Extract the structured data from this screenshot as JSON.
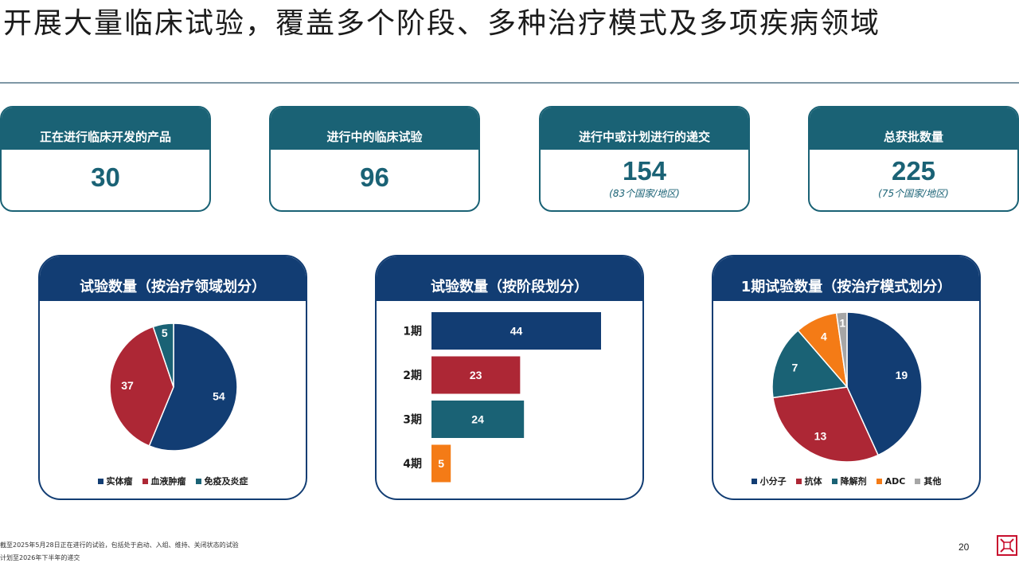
{
  "title": "开展大量临床试验，覆盖多个阶段、多种治疗模式及多项疾病领域",
  "kpis": [
    {
      "label": "正在进行临床开发的产品",
      "value": "30",
      "sub": ""
    },
    {
      "label": "进行中的临床试验",
      "value": "96",
      "sub": ""
    },
    {
      "label": "进行中或计划进行的递交",
      "value": "154",
      "sub": "(83个国家/地区)"
    },
    {
      "label": "总获批数量",
      "value": "225",
      "sub": "(75个国家/地区)"
    }
  ],
  "colors": {
    "navy": "#123d73",
    "red": "#ad2735",
    "teal": "#1a6275",
    "orange": "#f47b16",
    "gray": "#a6a6a6"
  },
  "chart_data": [
    {
      "type": "pie",
      "title": "试验数量（按治疗领域划分）",
      "categories": [
        "实体瘤",
        "血液肿瘤",
        "免疫及炎症"
      ],
      "values": [
        54,
        37,
        5
      ],
      "colors": [
        "#123d73",
        "#ad2735",
        "#1a6275"
      ],
      "legend": "bottom"
    },
    {
      "type": "bar",
      "orientation": "horizontal",
      "title": "试验数量（按阶段划分）",
      "categories": [
        "1期",
        "2期",
        "3期",
        "4期"
      ],
      "values": [
        44,
        23,
        24,
        5
      ],
      "colors": [
        "#123d73",
        "#ad2735",
        "#1a6275",
        "#f47b16"
      ]
    },
    {
      "type": "pie",
      "title": "1期试验数量（按治疗模式划分）",
      "categories": [
        "小分子",
        "抗体",
        "降解剂",
        "ADC",
        "其他"
      ],
      "values": [
        19,
        13,
        7,
        4,
        1
      ],
      "colors": [
        "#123d73",
        "#ad2735",
        "#1a6275",
        "#f47b16",
        "#a6a6a6"
      ],
      "legend": "bottom"
    }
  ],
  "footnotes": [
    "截至2025年5月28日正在进行的试验，包括处于启动、入组、维持、关闭状态的试验",
    "计划至2026年下半年的递交"
  ],
  "page_number": "20"
}
